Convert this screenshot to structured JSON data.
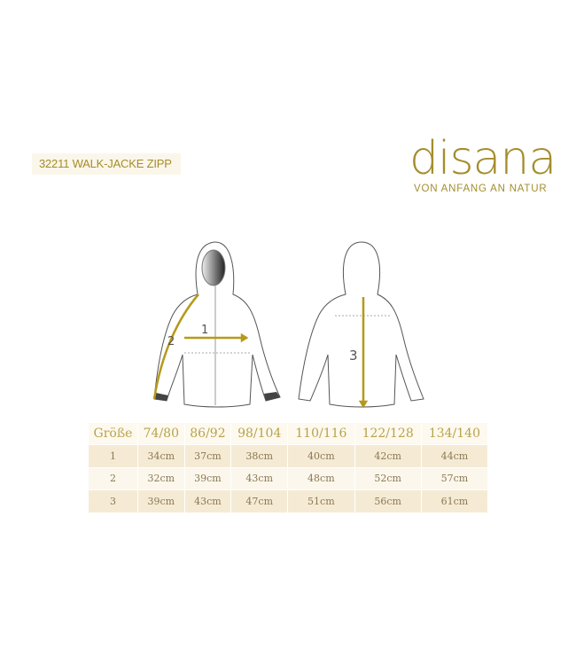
{
  "title": "32211 WALK-JACKE ZIPP",
  "brand": {
    "logo": "disana",
    "tagline": "VON ANFANG AN NATUR",
    "color": "#a48d2c"
  },
  "diagram": {
    "labels": [
      "1",
      "2",
      "3"
    ],
    "measure_color": "#b59a1a"
  },
  "size_table": {
    "headers": [
      "Größe",
      "74/80",
      "86/92",
      "98/104",
      "110/116",
      "122/128",
      "134/140"
    ],
    "rows": [
      [
        "1",
        "34cm",
        "37cm",
        "38cm",
        "40cm",
        "42cm",
        "44cm"
      ],
      [
        "2",
        "32cm",
        "39cm",
        "43cm",
        "48cm",
        "52cm",
        "57cm"
      ],
      [
        "3",
        "39cm",
        "43cm",
        "47cm",
        "51cm",
        "56cm",
        "61cm"
      ]
    ]
  }
}
